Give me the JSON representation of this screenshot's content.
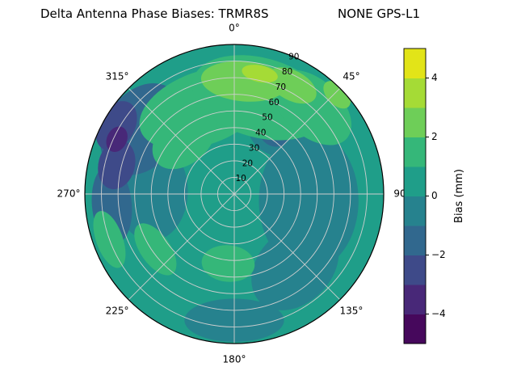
{
  "chart_data": {
    "type": "heatmap",
    "projection": "polar",
    "title": "Delta Antenna Phase Biases: TRMR8S",
    "subtitle": "NONE GPS-L1",
    "colormap": "viridis",
    "value_range": [
      -5,
      5
    ],
    "radial_max": 90,
    "radial_ticks": [
      10,
      20,
      30,
      40,
      50,
      60,
      70,
      80,
      90
    ],
    "angular_ticks": [
      {
        "deg": 0,
        "label": "0°"
      },
      {
        "deg": 45,
        "label": "45°"
      },
      {
        "deg": 90,
        "label": "90"
      },
      {
        "deg": 135,
        "label": "135°"
      },
      {
        "deg": 180,
        "label": "180°"
      },
      {
        "deg": 225,
        "label": "225°"
      },
      {
        "deg": 270,
        "label": "270°"
      },
      {
        "deg": 315,
        "label": "315°"
      }
    ],
    "colorbar": {
      "label": "Bias (mm)",
      "ticks": [
        -4,
        -2,
        0,
        2,
        4
      ],
      "tick_labels": [
        "−4",
        "−2",
        "0",
        "2",
        "4"
      ],
      "levels": [
        -5,
        -4,
        -3,
        -2,
        -1,
        0,
        1,
        2,
        3,
        4,
        5
      ],
      "band_colors": [
        "#46085c",
        "#482878",
        "#3e4a89",
        "#31688e",
        "#26828e",
        "#1f9e89",
        "#35b779",
        "#6ece58",
        "#a5db36",
        "#e2e418"
      ]
    },
    "base_value": 0.5,
    "regions": [
      {
        "az": 95,
        "zen": 45,
        "a": 42,
        "b": 30,
        "rot": 90,
        "value": -0.5
      },
      {
        "az": 140,
        "zen": 57,
        "a": 30,
        "b": 22,
        "rot": 135,
        "value": -0.5
      },
      {
        "az": 180,
        "zen": 76,
        "a": 30,
        "b": 13,
        "rot": 0,
        "value": -0.5
      },
      {
        "az": 272,
        "zen": 50,
        "a": 30,
        "b": 22,
        "rot": 90,
        "value": -0.5
      },
      {
        "az": 265,
        "zen": 74,
        "a": 24,
        "b": 12,
        "rot": 265,
        "value": -1.5
      },
      {
        "az": 305,
        "zen": 68,
        "a": 30,
        "b": 22,
        "rot": 305,
        "value": -1.5
      },
      {
        "az": 300,
        "zen": 82,
        "a": 16,
        "b": 11,
        "rot": 300,
        "value": -2.5
      },
      {
        "az": 284,
        "zen": 73,
        "a": 15,
        "b": 11,
        "rot": 284,
        "value": -2.5
      },
      {
        "az": 295,
        "zen": 78,
        "a": 8,
        "b": 6,
        "rot": 295,
        "value": -3.5
      },
      {
        "az": 33,
        "zen": 43,
        "a": 16,
        "b": 12,
        "rot": 33,
        "value": -0.5
      },
      {
        "az": 33,
        "zen": 43,
        "a": 9,
        "b": 7,
        "rot": 33,
        "value": -1.5
      },
      {
        "az": 340,
        "zen": 55,
        "a": 40,
        "b": 22,
        "rot": 340,
        "value": 1.5
      },
      {
        "az": 15,
        "zen": 60,
        "a": 42,
        "b": 24,
        "rot": 15,
        "value": 1.5
      },
      {
        "az": 42,
        "zen": 70,
        "a": 28,
        "b": 17,
        "rot": 42,
        "value": 1.5
      },
      {
        "az": 318,
        "zen": 45,
        "a": 22,
        "b": 15,
        "rot": 318,
        "value": 1.5
      },
      {
        "az": 185,
        "zen": 42,
        "a": 16,
        "b": 11,
        "rot": 5,
        "value": 1.5
      },
      {
        "az": 250,
        "zen": 80,
        "a": 18,
        "b": 8,
        "rot": 250,
        "value": 1.5
      },
      {
        "az": 235,
        "zen": 58,
        "a": 18,
        "b": 9,
        "rot": 235,
        "value": 1.5
      },
      {
        "az": 5,
        "zen": 68,
        "a": 26,
        "b": 12,
        "rot": 5,
        "value": 2.5
      },
      {
        "az": 28,
        "zen": 74,
        "a": 16,
        "b": 9,
        "rot": 28,
        "value": 2.5
      },
      {
        "az": 46,
        "zen": 86,
        "a": 10,
        "b": 6,
        "rot": 46,
        "value": 2.5
      },
      {
        "az": 12,
        "zen": 74,
        "a": 11,
        "b": 5,
        "rot": 12,
        "value": 3.5
      }
    ]
  }
}
